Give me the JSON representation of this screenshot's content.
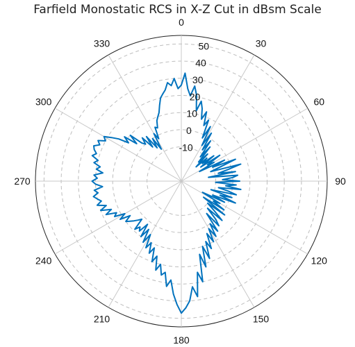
{
  "chart_data": {
    "type": "polar-line",
    "title": "Farfield Monostatic RCS in X-Z Cut in dBsm Scale",
    "theta_zero": "top",
    "theta_direction": "clockwise",
    "angle_ticks": [
      "0",
      "30",
      "60",
      "90",
      "120",
      "150",
      "180",
      "210",
      "240",
      "270",
      "300",
      "330"
    ],
    "r_ticks": [
      "-10",
      "0",
      "10",
      "20",
      "30",
      "40",
      "50"
    ],
    "rlim": [
      -30,
      55
    ],
    "grid": true,
    "series": [
      {
        "color": "#0072BD",
        "theta": [
          0,
          2,
          4,
          6,
          8,
          10,
          12,
          14,
          16,
          18,
          20,
          22,
          24,
          26,
          28,
          30,
          32,
          34,
          36,
          38,
          40,
          42,
          44,
          46,
          48,
          50,
          52,
          54,
          56,
          58,
          60,
          62,
          64,
          66,
          68,
          70,
          72,
          74,
          76,
          78,
          80,
          82,
          84,
          86,
          88,
          90,
          92,
          94,
          96,
          98,
          100,
          102,
          104,
          106,
          108,
          110,
          112,
          114,
          116,
          118,
          120,
          122,
          124,
          126,
          128,
          130,
          132,
          134,
          136,
          138,
          140,
          142,
          144,
          146,
          148,
          150,
          152,
          154,
          156,
          158,
          160,
          162,
          164,
          166,
          168,
          170,
          172,
          174,
          176,
          178,
          180,
          182,
          184,
          186,
          188,
          190,
          192,
          194,
          196,
          198,
          200,
          202,
          204,
          206,
          208,
          210,
          212,
          214,
          216,
          218,
          220,
          222,
          224,
          226,
          228,
          230,
          232,
          234,
          236,
          238,
          240,
          242,
          244,
          246,
          248,
          250,
          252,
          254,
          256,
          258,
          260,
          262,
          264,
          266,
          268,
          270,
          272,
          274,
          276,
          278,
          280,
          282,
          284,
          286,
          288,
          290,
          292,
          294,
          296,
          298,
          300,
          302,
          304,
          306,
          308,
          310,
          312,
          314,
          316,
          318,
          320,
          322,
          324,
          326,
          328,
          330,
          332,
          334,
          336,
          338,
          340,
          342,
          344,
          346,
          348,
          350,
          352,
          354,
          356,
          358
        ],
        "r": [
          26,
          33,
          24,
          20,
          26,
          21,
          12,
          18,
          14,
          8,
          13,
          5,
          9,
          -2,
          6,
          -6,
          3,
          -8,
          -1,
          -12,
          -4,
          -15,
          -8,
          -18,
          -10,
          -14,
          -6,
          -16,
          -3,
          -12,
          -8,
          -18,
          -2,
          -10,
          4,
          -6,
          -12,
          6,
          -2,
          -8,
          2,
          -14,
          3,
          0,
          -6,
          4,
          -10,
          2,
          -4,
          5,
          -8,
          -2,
          3,
          -12,
          1,
          -6,
          4,
          -10,
          -2,
          -16,
          -4,
          -8,
          0,
          -14,
          2,
          -10,
          -4,
          3,
          -8,
          0,
          4,
          -6,
          6,
          0,
          8,
          2,
          10,
          4,
          13,
          8,
          18,
          10,
          22,
          14,
          30,
          24,
          38,
          32,
          40,
          44,
          47,
          42,
          36,
          28,
          32,
          24,
          26,
          20,
          24,
          16,
          20,
          12,
          16,
          10,
          14,
          6,
          12,
          4,
          10,
          2,
          8,
          6,
          9,
          2,
          4,
          6,
          8,
          10,
          6,
          12,
          8,
          14,
          12,
          18,
          14,
          20,
          16,
          21,
          18,
          20,
          22,
          19,
          21,
          16,
          20,
          22,
          19,
          21,
          16,
          20,
          18,
          22,
          20,
          24,
          22,
          24,
          25,
          22,
          24,
          20,
          22,
          18,
          14,
          8,
          12,
          4,
          10,
          2,
          0,
          4,
          -4,
          3,
          -6,
          0,
          -8,
          2,
          -2,
          5,
          4,
          8,
          10,
          12,
          16,
          20,
          22,
          24,
          28,
          26,
          30,
          24
        ]
      }
    ]
  }
}
